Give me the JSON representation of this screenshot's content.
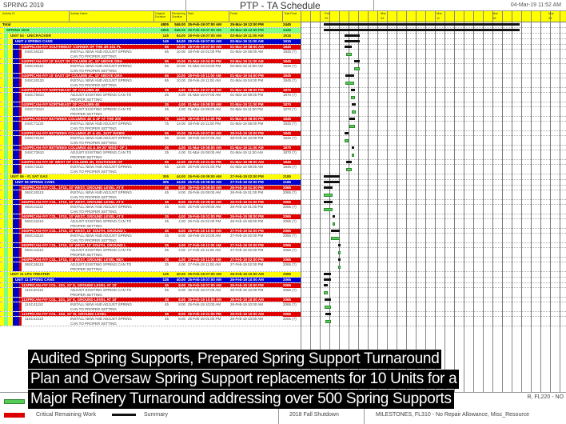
{
  "header": {
    "layout_name": "SPRING 2019",
    "title": "PTP - TA Schedule",
    "datetime": "04-Mar-19 11:52 AM"
  },
  "columns": {
    "id": "Activity ID",
    "name": "Activity Name",
    "orig_dur": "Original Duration",
    "rem_dur": "Remaining Duration",
    "start": "Start",
    "finish": "Finish",
    "total_float": "Total Float"
  },
  "timeline": {
    "labels": [
      "25",
      "04",
      "11",
      "18",
      "25"
    ],
    "month_labels": [
      "Feb",
      "Mar",
      "Mar",
      "Mar",
      "Mar"
    ]
  },
  "colors": {
    "total": "#ffff00",
    "project": "#80ff80",
    "unit": "#ffff00",
    "wbs": "#0000cc",
    "task_header": "#e00000",
    "task": "#ffffff",
    "task_bar": "#55cc55"
  },
  "rows": [
    {
      "t": "total",
      "name": "Total",
      "dur": "4805",
      "rd": "546.00",
      "start": "25-Feb-19 07:00 AM",
      "finish": "25-Mar-19 12:00 PM",
      "tf": "2445"
    },
    {
      "t": "project",
      "name": "SPRING 2019",
      "dur": "4805",
      "rd": "546.00",
      "start": "25-Feb-19 07:00 AM",
      "finish": "25-Mar-19 12:00 PM",
      "tf": "2445"
    },
    {
      "t": "unit",
      "name": "UNIT 04 - UNICRACKER",
      "dur": "145",
      "rd": "84.00",
      "start": "28-Feb-19 07:00 AM",
      "finish": "02-Mar-19 11:00 AM",
      "tf": "1915"
    },
    {
      "t": "wbs",
      "name": "UNIT 4 SPRING CANS",
      "dur": "145",
      "rd": "84.00",
      "start": "28-Feb-19 07:00 AM",
      "finish": "02-Mar-19 11:00 AM",
      "tf": "1915"
    },
    {
      "t": "hdr",
      "name": "04SPRCAN-### SOUTHWEST CORNER OF THE 4R-101 PL",
      "dur": "65",
      "rd": "10.00",
      "start": "28-Feb-19 07:00 AM",
      "finish": "01-Mar-19 08:00 AM",
      "tf": "1845"
    },
    {
      "t": "task",
      "id": "04SC40110",
      "name": "INSTALL NEW AND ADJUST SPRING|CAN TO PROPER SETTING",
      "dur": "65",
      "rd": "10.00",
      "start": "28-Feb-19 01:00 PM",
      "finish": "01-Mar-19 08:00 AM",
      "tf": "1845 (?)"
    },
    {
      "t": "hdr",
      "name": "04SPRCAN-### 10' EAST OF COLUMN 4C, 10' ABOVE GRA",
      "dur": "65",
      "rd": "10.00",
      "start": "01-Mar-19 04:00 PM",
      "finish": "02-Mar-19 11:00 AM",
      "tf": "1845"
    },
    {
      "t": "task",
      "id": "04SC40110",
      "name": "INSTALL NEW AND ADJUST SPRING|CAN TO PROPER SETTING",
      "dur": "65",
      "rd": "10.00",
      "start": "01-Mar-19 04:00 PM",
      "finish": "02-Mar-19 11:00 AM",
      "tf": "1845 (?)"
    },
    {
      "t": "hdr",
      "name": "04SPRCAN-### 10' EAST OF COLUMN 4C, 10' ABOVE GRA",
      "dur": "65",
      "rd": "10.00",
      "start": "28-Feb-19 11:00 AM",
      "finish": "01-Mar-19 04:00 PM",
      "tf": "1845"
    },
    {
      "t": "task",
      "id": "04SC40120",
      "name": "INSTALL NEW AND ADJUST SPRING|CAN TO PROPER SETTING",
      "dur": "65",
      "rd": "10.00",
      "start": "28-Feb-19 11:00 AM",
      "finish": "01-Mar-19 04:00 PM",
      "tf": "1845 (?)"
    },
    {
      "t": "hdr",
      "name": "04SPRCAN-### NORTHEAST OF COLUMN 4E",
      "dur": "25",
      "rd": "4.00",
      "start": "01-Mar-19 07:00 AM",
      "finish": "01-Mar-19 08:00 PM",
      "tf": "1870"
    },
    {
      "t": "task",
      "id": "04SC70810",
      "name": "ADJUST EXISTING SPRING CAN TO|PROPER SETTING",
      "dur": "25",
      "rd": "4.00",
      "start": "01-Mar-19 07:00 AM",
      "finish": "01-Mar-19 08:00 PM",
      "tf": "1870 (?)"
    },
    {
      "t": "hdr",
      "name": "04SPRCAN-### NORTHEAST OF COLUMN 4E",
      "dur": "25",
      "rd": "4.00",
      "start": "01-Mar-19 09:00 AM",
      "finish": "01-Mar-19 11:00 PM",
      "tf": "1870"
    },
    {
      "t": "task",
      "id": "04SC71010",
      "name": "ADJUST EXISTING SPRING CAN TO|PROPER SETTING",
      "dur": "25",
      "rd": "4.00",
      "start": "01-Mar-19 09:00 AM",
      "finish": "01-Mar-19 11:00 PM",
      "tf": "1870 (?)"
    },
    {
      "t": "hdr",
      "name": "04SPRCAN-### BETWEEN COLUMNS 4E & 4F AT THE 300",
      "dur": "75",
      "rd": "14.00",
      "start": "28-Feb-19 11:00 PM",
      "finish": "01-Mar-19 08:00 PM",
      "tf": "1845"
    },
    {
      "t": "task",
      "id": "04SC71120",
      "name": "INSTALL NEW AND ADJUST SPRING|CAN TO PROPER SETTING",
      "dur": "75",
      "rd": "14.00",
      "start": "28-Feb-19 11:00 PM",
      "finish": "01-Mar-19 08:00 PM",
      "tf": "1845 (?)"
    },
    {
      "t": "hdr",
      "name": "04SPRCAN-### BETWEEN COLUMNS 4F & 4G, JUST INSIDE",
      "dur": "65",
      "rd": "10.00",
      "start": "28-Feb-19 07:00 AM",
      "finish": "28-Feb-19 10:00 PM",
      "tf": "1845"
    },
    {
      "t": "task",
      "id": "04SC72120",
      "name": "INSTALL NEW AND ADJUST SPRING|CAN TO PROPER SETTING",
      "dur": "65",
      "rd": "10.00",
      "start": "28-Feb-19 07:00 AM",
      "finish": "28-Feb-19 10:00 PM",
      "tf": "1845 (?)"
    },
    {
      "t": "hdr",
      "name": "04SPRCAN-### BETWEEN COLUMNS 4G & 4H 20' WEST OF 1",
      "dur": "25",
      "rd": "4.00",
      "start": "01-Mar-19 08:00 AM",
      "finish": "01-Mar-19 11:00 AM",
      "tf": "1870"
    },
    {
      "t": "task",
      "id": "04SC72610",
      "name": "ADJUST EXISTING SPRING CAN TO|PROPER SETTING",
      "dur": "25",
      "rd": "4.00",
      "start": "01-Mar-19 08:00 AM",
      "finish": "01-Mar-19 11:00 AM",
      "tf": "1870 (?)"
    },
    {
      "t": "hdr",
      "name": "04SPRCAN-### 20' WEST OF COLUMN 4H, SOUTHSIDE OF",
      "dur": "65",
      "rd": "12.00",
      "start": "28-Feb-19 01:00 PM",
      "finish": "01-Mar-19 08:00 AM",
      "tf": "1845"
    },
    {
      "t": "task",
      "id": "04SC73110",
      "name": "INSTALL NEW AND ADJUST SPRING|CAN TO PROPER SETTING",
      "dur": "65",
      "rd": "12.00",
      "start": "28-Feb-19 01:00 PM",
      "finish": "01-Mar-19 08:00 AM",
      "tf": "1845 (?)"
    },
    {
      "t": "unit",
      "name": "UNIT 06 - #1 SAT GAS",
      "dur": "305",
      "rd": "44.00",
      "start": "25-Feb-19 09:00 AM",
      "finish": "27-Feb-19 02:00 PM",
      "tf": "2185"
    },
    {
      "t": "wbs",
      "name": "UNIT 06 SPRING CANS",
      "dur": "305",
      "rd": "44.00",
      "start": "25-Feb-19 09:00 AM",
      "finish": "27-Feb-19 02:00 PM",
      "tf": "2185"
    },
    {
      "t": "hdr",
      "name": "06SPRCAN-### COL. 1F10, 10' WEST, GROUND LEVEL AT 8",
      "dur": "45",
      "rd": "8.00",
      "start": "25-Feb-19 09:00 AM",
      "finish": "26-Feb-19 01:00 PM",
      "tf": "2065"
    },
    {
      "t": "task",
      "id": "06SC40110",
      "name": "INSTALL NEW AND ADJUST SPRING|CAN TO PROPER SETTING",
      "dur": "45",
      "rd": "8.00",
      "start": "25-Feb-19 09:00 AM",
      "finish": "26-Feb-19 01:00 PM",
      "tf": "2065 (?)"
    },
    {
      "t": "hdr",
      "name": "06SPRCAN-### COL. 1F10, 10' WEST, GROUND LEVEL AT 8",
      "dur": "45",
      "rd": "8.00",
      "start": "25-Feb-19 09:00 AM",
      "finish": "26-Feb-19 01:00 PM",
      "tf": "2065"
    },
    {
      "t": "task",
      "id": "06SC41110",
      "name": "INSTALL NEW AND ADJUST SPRING|CAN TO PROPER SETTING",
      "dur": "45",
      "rd": "8.00",
      "start": "25-Feb-19 09:00 AM",
      "finish": "26-Feb-19 01:00 PM",
      "tf": "2065 (?)"
    },
    {
      "t": "hdr",
      "name": "06SPRCAN-### COL. 1F10, 10' WEST, GROUND LEVEL AT 8",
      "dur": "25",
      "rd": "4.00",
      "start": "26-Feb-19 01:00 PM",
      "finish": "26-Feb-19 08:00 PM",
      "tf": "2065"
    },
    {
      "t": "task",
      "id": "06SC42110",
      "name": "ADJUST EXISTING SPRING CAN TO|PROPER SETTING",
      "dur": "25",
      "rd": "4.00",
      "start": "26-Feb-19 01:00 PM",
      "finish": "26-Feb-19 08:00 PM",
      "tf": "2065 (?)"
    },
    {
      "t": "hdr",
      "name": "06SPRCAN-### COL. 1F10, 10' WEST, 10' SOUTH, GROUND L",
      "dur": "45",
      "rd": "8.00",
      "start": "26-Feb-19 10:00 AM",
      "finish": "27-Feb-19 02:00 PM",
      "tf": "2065"
    },
    {
      "t": "task",
      "id": "06SC43110",
      "name": "INSTALL NEW AND ADJUST SPRING|CAN TO PROPER SETTING",
      "dur": "45",
      "rd": "8.00",
      "start": "26-Feb-19 10:00 AM",
      "finish": "27-Feb-19 02:00 PM",
      "tf": "2065 (?)"
    },
    {
      "t": "hdr",
      "name": "06SPRCAN-### COL. 1F10, 10' WEST, 10' SOUTH, GROUND L",
      "dur": "25",
      "rd": "4.00",
      "start": "27-Feb-19 11:00 AM",
      "finish": "27-Feb-19 02:00 PM",
      "tf": "2065"
    },
    {
      "t": "task",
      "id": "06SC44110",
      "name": "ADJUST EXISTING SPRING CAN TO|PROPER SETTING",
      "dur": "25",
      "rd": "4.00",
      "start": "27-Feb-19 11:00 AM",
      "finish": "27-Feb-19 02:00 PM",
      "tf": "2065 (?)"
    },
    {
      "t": "hdr",
      "name": "06SPRCAN-### COL. 1F10, 10' WEST, GROUND LEVEL NEA",
      "dur": "25",
      "rd": "4.00",
      "start": "27-Feb-19 11:00 AM",
      "finish": "27-Feb-19 02:00 PM",
      "tf": "2065"
    },
    {
      "t": "task",
      "id": "06SC45110",
      "name": "ADJUST EXISTING SPRING CAN TO|PROPER SETTING",
      "dur": "25",
      "rd": "4.00",
      "start": "27-Feb-19 11:00 AM",
      "finish": "27-Feb-19 02:00 PM",
      "tf": "2065 (?)"
    },
    {
      "t": "unit",
      "name": "UNIT 11 LPG TREATER",
      "dur": "135",
      "rd": "40.00",
      "start": "25-Feb-19 07:00 AM",
      "finish": "26-Feb-19 10:00 AM",
      "tf": "2065"
    },
    {
      "t": "wbs",
      "name": "UNIT 11 SPRING CANS",
      "dur": "135",
      "rd": "40.00",
      "start": "25-Feb-19 07:00 AM",
      "finish": "26-Feb-19 10:00 AM",
      "tf": "2065"
    },
    {
      "t": "hdr",
      "name": "11SPRCAN-### COL. 1D1, 10' E, GROUND LEVEL AT 10'",
      "dur": "45",
      "rd": "8.00",
      "start": "25-Feb-19 07:00 AM",
      "finish": "25-Feb-19 10:00 PM",
      "tf": "2065"
    },
    {
      "t": "task",
      "id": "11SC40110",
      "name": "ADJUST EXISTING SPRING CAN TO|PROPER SETTING",
      "dur": "45",
      "rd": "8.00",
      "start": "25-Feb-19 07:00 AM",
      "finish": "25-Feb-19 10:00 PM",
      "tf": "2065 (?)"
    },
    {
      "t": "hdr",
      "name": "11SPRCAN-### COL. 1D1, 10' E, GROUND LEVEL AT 10'",
      "dur": "45",
      "rd": "8.00",
      "start": "25-Feb-19 10:00 AM",
      "finish": "26-Feb-19 10:00 AM",
      "tf": "2065"
    },
    {
      "t": "task",
      "id": "11SC41110",
      "name": "INSTALL NEW AND ADJUST SPRING|CAN TO PROPER SETTING",
      "dur": "45",
      "rd": "8.00",
      "start": "25-Feb-19 10:00 AM",
      "finish": "26-Feb-19 10:00 AM",
      "tf": "2065 (?)"
    },
    {
      "t": "hdr",
      "name": "11SPRCAN-### COL. 1D2, 10' W, GROUND LEVEL",
      "dur": "45",
      "rd": "8.00",
      "start": "25-Feb-19 01:00 PM",
      "finish": "26-Feb-19 10:00 AM",
      "tf": "2065"
    },
    {
      "t": "task",
      "id": "11SC42110",
      "name": "INSTALL NEW AND ADJUST SPRING|CAN TO PROPER SETTING",
      "dur": "45",
      "rd": "8.00",
      "start": "25-Feb-19 01:00 PM",
      "finish": "26-Feb-19 10:00 AM",
      "tf": "2065 (?)"
    }
  ],
  "caption": [
    "Audited Spring Supports, Prepared Spring Support Turnaround",
    "Plan and Oversaw  Spring Support replacements  for 10 Units  for a",
    "Major Refinery Turnaround addressing over 500 Spring Supports"
  ],
  "legend": {
    "critical": "Critical Remaining Work",
    "summary": "Summary",
    "project_name": "2018 Fall Shutdown",
    "filter_line1": "R, FL220 - NO",
    "filter_line2": "MILESTONES, FL310 - No Repair Allowance, Misc_Resource"
  }
}
